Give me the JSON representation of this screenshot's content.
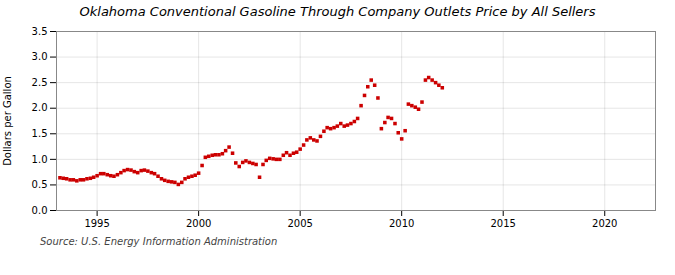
{
  "chart_data": {
    "type": "scatter",
    "title": "Oklahoma Conventional Gasoline Through Company Outlets Price by All Sellers",
    "ylabel": "Dollars per Gallon",
    "source": "Source: U.S. Energy Information Administration",
    "color": "#cc0000",
    "marker": "square",
    "grid": true,
    "xlim": [
      1993.0,
      2022.5
    ],
    "ylim": [
      0.0,
      3.5
    ],
    "xticks": [
      1995,
      2000,
      2005,
      2010,
      2015,
      2020
    ],
    "yticks": [
      {
        "value": 0.0,
        "label": "0.0"
      },
      0.5,
      {
        "value": 1.0,
        "label": "1.0"
      },
      1.5,
      {
        "value": 2.0,
        "label": "2.0"
      },
      2.5,
      {
        "value": 3.0,
        "label": "3.0"
      },
      3.5
    ],
    "x": [
      1993.17,
      1993.33,
      1993.5,
      1993.67,
      1993.83,
      1994.0,
      1994.17,
      1994.33,
      1994.5,
      1994.67,
      1994.83,
      1995.0,
      1995.17,
      1995.33,
      1995.5,
      1995.67,
      1995.83,
      1996.0,
      1996.17,
      1996.33,
      1996.5,
      1996.67,
      1996.83,
      1997.0,
      1997.17,
      1997.33,
      1997.5,
      1997.67,
      1997.83,
      1998.0,
      1998.17,
      1998.33,
      1998.5,
      1998.67,
      1998.83,
      1999.0,
      1999.17,
      1999.33,
      1999.5,
      1999.67,
      1999.83,
      2000.0,
      2000.17,
      2000.33,
      2000.5,
      2000.67,
      2000.83,
      2001.0,
      2001.17,
      2001.33,
      2001.5,
      2001.67,
      2001.83,
      2002.0,
      2002.17,
      2002.33,
      2002.5,
      2002.67,
      2002.83,
      2003.0,
      2003.17,
      2003.33,
      2003.5,
      2003.67,
      2003.83,
      2004.0,
      2004.17,
      2004.33,
      2004.5,
      2004.67,
      2004.83,
      2005.0,
      2005.17,
      2005.33,
      2005.5,
      2005.67,
      2005.83,
      2006.0,
      2006.17,
      2006.33,
      2006.5,
      2006.67,
      2006.83,
      2007.0,
      2007.17,
      2007.33,
      2007.5,
      2007.67,
      2007.83,
      2008.0,
      2008.17,
      2008.33,
      2008.5,
      2008.67,
      2008.83,
      2009.0,
      2009.17,
      2009.33,
      2009.5,
      2009.67,
      2009.83,
      2010.0,
      2010.17,
      2010.33,
      2010.5,
      2010.67,
      2010.83,
      2011.0,
      2011.17,
      2011.33,
      2011.5,
      2011.67,
      2011.83,
      2012.0
    ],
    "values": [
      0.64,
      0.63,
      0.62,
      0.6,
      0.6,
      0.58,
      0.6,
      0.6,
      0.62,
      0.63,
      0.65,
      0.68,
      0.72,
      0.72,
      0.7,
      0.68,
      0.67,
      0.7,
      0.74,
      0.78,
      0.8,
      0.79,
      0.76,
      0.74,
      0.78,
      0.79,
      0.77,
      0.74,
      0.72,
      0.67,
      0.62,
      0.59,
      0.57,
      0.56,
      0.55,
      0.51,
      0.55,
      0.62,
      0.65,
      0.67,
      0.69,
      0.73,
      0.88,
      1.04,
      1.06,
      1.08,
      1.09,
      1.09,
      1.11,
      1.17,
      1.24,
      1.12,
      0.93,
      0.86,
      0.94,
      0.97,
      0.94,
      0.92,
      0.9,
      0.65,
      0.9,
      0.98,
      1.02,
      1.01,
      1.0,
      1.0,
      1.08,
      1.13,
      1.08,
      1.12,
      1.14,
      1.2,
      1.28,
      1.38,
      1.42,
      1.38,
      1.36,
      1.45,
      1.55,
      1.62,
      1.6,
      1.62,
      1.65,
      1.7,
      1.65,
      1.67,
      1.7,
      1.74,
      1.8,
      2.05,
      2.25,
      2.42,
      2.55,
      2.45,
      2.2,
      1.6,
      1.72,
      1.82,
      1.8,
      1.7,
      1.52,
      1.4,
      1.56,
      2.08,
      2.05,
      2.02,
      1.98,
      2.12,
      2.55,
      2.6,
      2.55,
      2.5,
      2.45,
      2.4
    ]
  }
}
